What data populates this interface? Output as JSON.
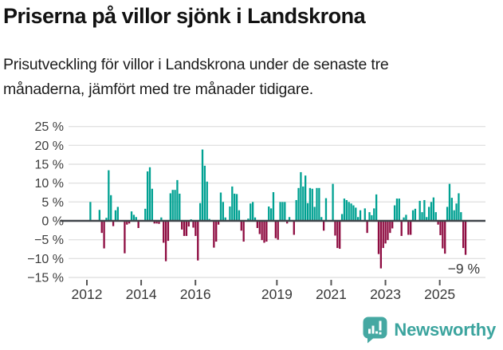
{
  "header": {
    "title": "Priserna på villor sjönk i Landskrona",
    "subtitle": "Prisutveckling för villor i Landskrona under de senaste tre månaderna, jämfört med tre månader tidigare.",
    "subtitle_lines": [
      "Prisutveckling för villor i Landskrona under de senaste tre",
      "månaderna, jämfört med tre månader tidigare."
    ]
  },
  "footer": {
    "brand": "Newsworthy",
    "logo_icon": "bar-chart-speech-bubble-icon"
  },
  "colors": {
    "positive_bar": "#00a192",
    "negative_bar": "#8e0c41",
    "zero_axis": "#40454a",
    "gridline": "#e2e2e2",
    "y_tick_label": "#3d3d3d",
    "x_tick_label": "#383838",
    "annotation": "#383838",
    "brand_teal": "#3ba49e",
    "background": "#ffffff"
  },
  "chart_data": {
    "type": "bar",
    "title": "Priserna på villor sjönk i Landskrona",
    "subtitle": "Prisutveckling för villor i Landskrona under de senaste tre månaderna, jämfört med tre månader tidigare.",
    "unit": "%",
    "frequency": "monthly",
    "start": "2012-01",
    "end": "2025-10",
    "grid": true,
    "legend": null,
    "ylim": [
      -15,
      25
    ],
    "y_ticks": [
      25,
      20,
      15,
      10,
      5,
      0,
      -5,
      -10,
      -15
    ],
    "y_tick_labels": [
      "25 %",
      "20 %",
      "15 %",
      "10 %",
      "5 %",
      "0 %",
      "−5 %",
      "−10 %",
      "−15 %"
    ],
    "x_tick_years": [
      2012,
      2014,
      2016,
      2019,
      2021,
      2023,
      2025
    ],
    "latest_value": -9,
    "annotation": "−9 %",
    "values": [
      0,
      5.0,
      0,
      0,
      0,
      2.9,
      -3.2,
      -7.3,
      0.8,
      13.4,
      6.8,
      -1.4,
      2.8,
      3.7,
      0,
      0,
      -8.6,
      -1.0,
      -0.7,
      2.5,
      1.6,
      1.0,
      -1.9,
      0,
      0,
      3.2,
      13.1,
      14.2,
      8.5,
      -0.7,
      -0.7,
      -0.8,
      0.9,
      -5.8,
      -10.7,
      -5.3,
      7.3,
      8.2,
      8.2,
      10.8,
      7.2,
      -2.3,
      -4.0,
      -4.0,
      -1.5,
      0.4,
      -1.8,
      -4.0,
      -10.5,
      4.7,
      18.9,
      14.6,
      10.4,
      0.5,
      0,
      -7.1,
      -5.5,
      -1.0,
      7.5,
      5.0,
      0.9,
      0,
      3.8,
      9.1,
      7.2,
      7.1,
      2.8,
      -2.6,
      -5.5,
      0,
      0.6,
      4.6,
      5.0,
      0.9,
      -1.9,
      -3.5,
      -5.1,
      -5.8,
      -5.5,
      3.8,
      3.3,
      7.6,
      -4.6,
      -5.0,
      5.0,
      5.0,
      5.0,
      -0.7,
      1.0,
      0,
      -3.7,
      5.5,
      8.7,
      12.9,
      9.1,
      12.0,
      4.7,
      8.7,
      8.5,
      3.7,
      8.7,
      8.7,
      1.0,
      -2.6,
      6.0,
      0,
      0,
      9.8,
      -3.9,
      -7.2,
      -7.4,
      1.8,
      5.9,
      5.5,
      5.0,
      4.6,
      4.1,
      3.5,
      1.0,
      2.8,
      0,
      3.3,
      -3.2,
      2.3,
      1.5,
      3.3,
      7.0,
      -8.8,
      -12.6,
      -7.2,
      -6.0,
      -5.1,
      -3.2,
      -2.0,
      4.1,
      5.9,
      5.9,
      -4.0,
      0.9,
      1.6,
      -3.7,
      -3.7,
      2.8,
      3.2,
      0,
      5.3,
      2.3,
      5.5,
      1.0,
      3.7,
      5.0,
      6.2,
      2.3,
      -1.0,
      -3.8,
      -7.3,
      -8.7,
      3.7,
      9.8,
      6.1,
      2.8,
      4.6,
      7.3,
      2.3,
      -7.2,
      -9.0
    ]
  }
}
